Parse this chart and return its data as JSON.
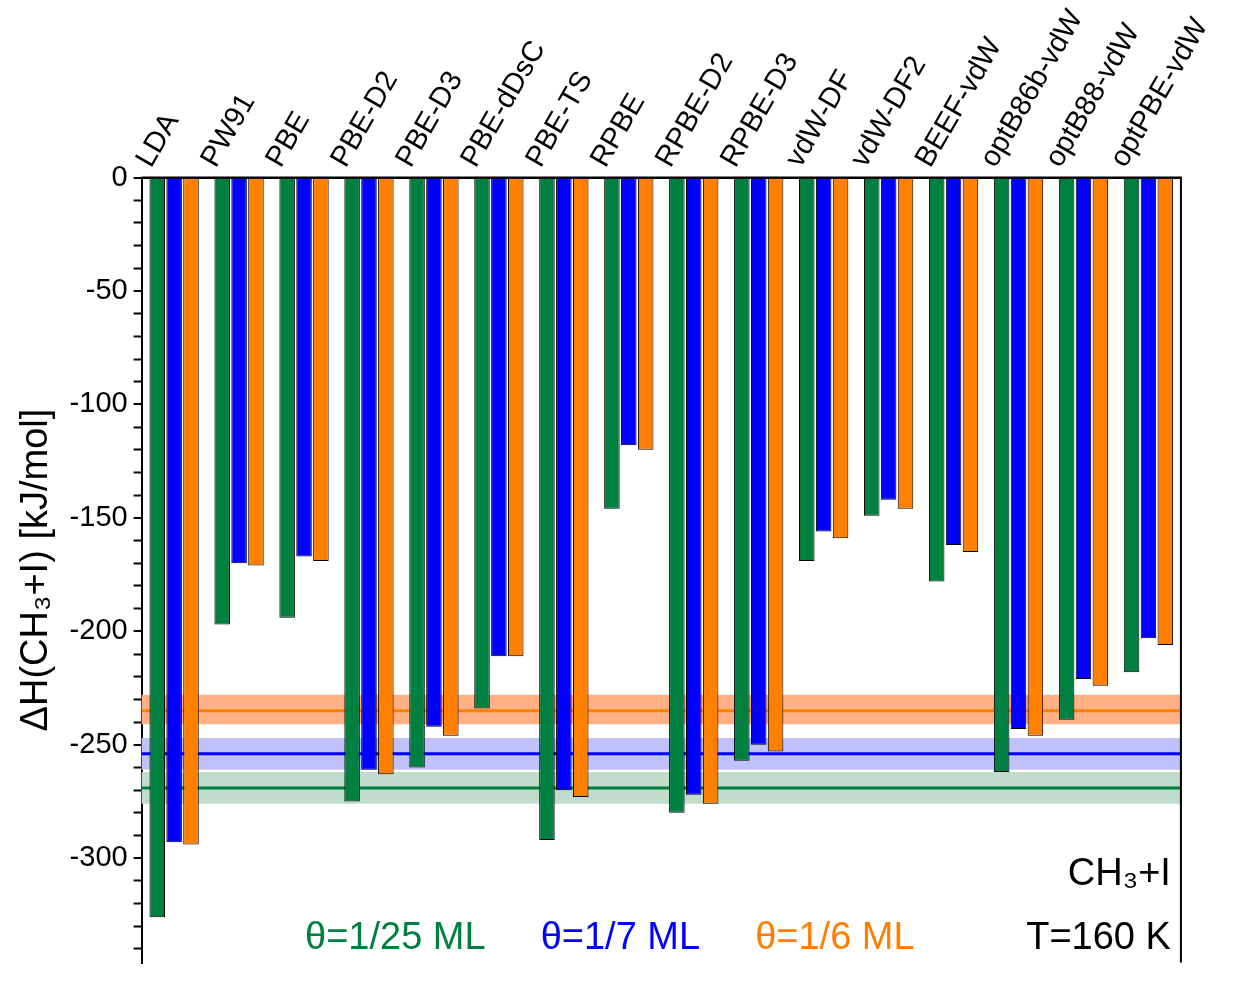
{
  "chart_data": {
    "type": "bar",
    "ylabel": "ΔH(CH₃+I) [kJ/mol]",
    "categories": [
      "LDA",
      "PW91",
      "PBE",
      "PBE-D2",
      "PBE-D3",
      "PBE-dDsC",
      "PBE-TS",
      "RPBE",
      "RPBE-D2",
      "RPBE-D3",
      "vdW-DF",
      "vdW-DF2",
      "BEEF-vdW",
      "optB86b-vdW",
      "optB88-vdW",
      "optPBE-vdW"
    ],
    "series": [
      {
        "name": "θ=1/25 ML",
        "color": "#008040",
        "values": [
          -326,
          -197,
          -194,
          -275,
          -260,
          -234,
          -292,
          -146,
          -280,
          -257,
          -169,
          -149,
          -178,
          -262,
          -239,
          -218
        ]
      },
      {
        "name": "θ=1/7 ML",
        "color": "#0000ff",
        "values": [
          -293,
          -170,
          -167,
          -261,
          -242,
          -211,
          -270,
          -118,
          -272,
          -250,
          -156,
          -142,
          -162,
          -243,
          -221,
          -203
        ]
      },
      {
        "name": "θ=1/6 ML",
        "color": "#ff8000",
        "values": [
          -294,
          -171,
          -169,
          -263,
          -246,
          -211,
          -273,
          -120,
          -276,
          -253,
          -159,
          -146,
          -165,
          -246,
          -224,
          -206
        ]
      }
    ],
    "ylim": [
      -346,
      0
    ],
    "yticks": [
      0,
      {
        "value": -10,
        "label": null
      },
      {
        "value": -20,
        "label": null
      },
      {
        "value": -30,
        "label": null
      },
      {
        "value": -40,
        "label": null
      },
      -50,
      {
        "value": -60,
        "label": null
      },
      {
        "value": -70,
        "label": null
      },
      {
        "value": -80,
        "label": null
      },
      {
        "value": -90,
        "label": null
      },
      -100,
      {
        "value": -110,
        "label": null
      },
      {
        "value": -120,
        "label": null
      },
      {
        "value": -130,
        "label": null
      },
      {
        "value": -140,
        "label": null
      },
      -150,
      {
        "value": -160,
        "label": null
      },
      {
        "value": -170,
        "label": null
      },
      {
        "value": -180,
        "label": null
      },
      {
        "value": -190,
        "label": null
      },
      -200,
      {
        "value": -210,
        "label": null
      },
      {
        "value": -220,
        "label": null
      },
      {
        "value": -230,
        "label": null
      },
      {
        "value": -240,
        "label": null
      },
      -250,
      {
        "value": -260,
        "label": null
      },
      {
        "value": -270,
        "label": null
      },
      {
        "value": -280,
        "label": null
      },
      {
        "value": -290,
        "label": null
      },
      -300,
      {
        "value": -310,
        "label": null
      },
      {
        "value": -320,
        "label": null
      },
      {
        "value": -330,
        "label": null
      },
      {
        "value": -340,
        "label": null
      }
    ],
    "bands": [
      {
        "axis": "y",
        "from": -241,
        "to": -228,
        "color": "#ffb085"
      },
      {
        "axis": "y",
        "from": -261,
        "to": -247,
        "color": "#c0c0fa"
      },
      {
        "axis": "y",
        "from": -276,
        "to": -262,
        "color": "#c0dccc"
      }
    ],
    "ref_lines": [
      {
        "axis": "y",
        "value": -235,
        "color": "#ff8000",
        "line_style": "solid"
      },
      {
        "axis": "y",
        "value": -254,
        "color": "#0000ff",
        "line_style": "solid"
      },
      {
        "axis": "y",
        "value": -269,
        "color": "#008040",
        "line_style": "solid"
      }
    ],
    "annotations": [
      "CH₃+I",
      "T=160 K"
    ],
    "legend": "bottom",
    "grid": false
  }
}
